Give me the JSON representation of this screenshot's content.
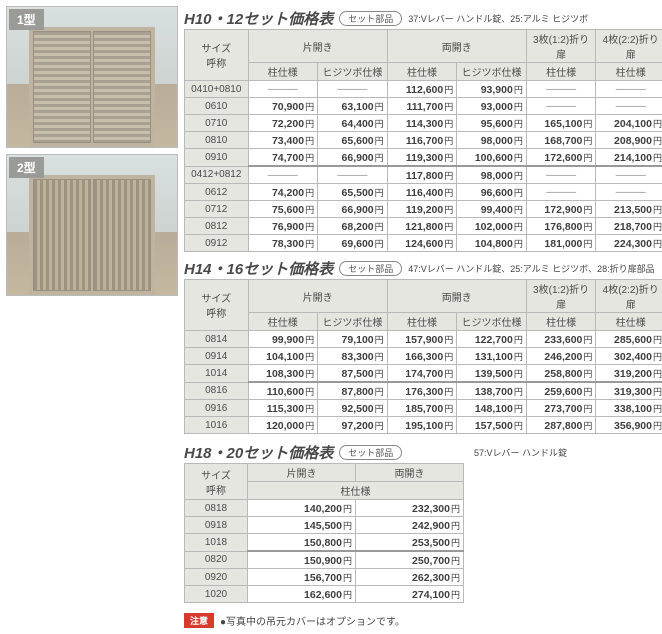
{
  "thumbs": [
    {
      "label": "1型"
    },
    {
      "label": "2型"
    }
  ],
  "common": {
    "parts_pill": "セット部品",
    "size_header1": "サイズ",
    "size_header2": "呼称",
    "single": "片開き",
    "double": "両開き",
    "fold3": "3枚(1:2)折り扉",
    "fold4": "4枚(2:2)折り扉",
    "col_pillar": "柱仕様",
    "col_hiji": "ヒジツボ仕様"
  },
  "table1": {
    "title": "H10・12セット価格表",
    "parts": "37:Vレバー ハンドル錠、25:アルミ ヒジツボ",
    "rows": [
      {
        "size": "0410+0810",
        "c": [
          "—",
          "—",
          "112,600",
          "93,900",
          "—",
          "—"
        ]
      },
      {
        "size": "0610",
        "c": [
          "70,900",
          "63,100",
          "111,700",
          "93,000",
          "—",
          "—"
        ]
      },
      {
        "size": "0710",
        "c": [
          "72,200",
          "64,400",
          "114,300",
          "95,600",
          "165,100",
          "204,100"
        ]
      },
      {
        "size": "0810",
        "c": [
          "73,400",
          "65,600",
          "116,700",
          "98,000",
          "168,700",
          "208,900"
        ]
      },
      {
        "size": "0910",
        "c": [
          "74,700",
          "66,900",
          "119,300",
          "100,600",
          "172,600",
          "214,100"
        ]
      },
      {
        "size": "0412+0812",
        "c": [
          "—",
          "—",
          "117,800",
          "98,000",
          "—",
          "—"
        ],
        "sep": true
      },
      {
        "size": "0612",
        "c": [
          "74,200",
          "65,500",
          "116,400",
          "96,600",
          "—",
          "—"
        ]
      },
      {
        "size": "0712",
        "c": [
          "75,600",
          "66,900",
          "119,200",
          "99,400",
          "172,900",
          "213,500"
        ]
      },
      {
        "size": "0812",
        "c": [
          "76,900",
          "68,200",
          "121,800",
          "102,000",
          "176,800",
          "218,700"
        ]
      },
      {
        "size": "0912",
        "c": [
          "78,300",
          "69,600",
          "124,600",
          "104,800",
          "181,000",
          "224,300"
        ]
      }
    ]
  },
  "table2": {
    "title": "H14・16セット価格表",
    "parts": "47:Vレバー ハンドル錠、25:アルミ ヒジツボ、28:折り扉部品",
    "rows": [
      {
        "size": "0814",
        "c": [
          "99,900",
          "79,100",
          "157,900",
          "122,700",
          "233,600",
          "285,600"
        ]
      },
      {
        "size": "0914",
        "c": [
          "104,100",
          "83,300",
          "166,300",
          "131,100",
          "246,200",
          "302,400"
        ]
      },
      {
        "size": "1014",
        "c": [
          "108,300",
          "87,500",
          "174,700",
          "139,500",
          "258,800",
          "319,200"
        ]
      },
      {
        "size": "0816",
        "c": [
          "110,600",
          "87,800",
          "176,300",
          "138,700",
          "259,600",
          "319,300"
        ],
        "sep": true
      },
      {
        "size": "0916",
        "c": [
          "115,300",
          "92,500",
          "185,700",
          "148,100",
          "273,700",
          "338,100"
        ]
      },
      {
        "size": "1016",
        "c": [
          "120,000",
          "97,200",
          "195,100",
          "157,500",
          "287,800",
          "356,900"
        ]
      }
    ]
  },
  "table3": {
    "title": "H18・20セット価格表",
    "parts": "57:Vレバー ハンドル錠",
    "rows": [
      {
        "size": "0818",
        "c": [
          "140,200",
          "232,300"
        ]
      },
      {
        "size": "0918",
        "c": [
          "145,500",
          "242,900"
        ]
      },
      {
        "size": "1018",
        "c": [
          "150,800",
          "253,500"
        ]
      },
      {
        "size": "0820",
        "c": [
          "150,900",
          "250,700"
        ],
        "sep": true
      },
      {
        "size": "0920",
        "c": [
          "156,700",
          "262,300"
        ]
      },
      {
        "size": "1020",
        "c": [
          "162,600",
          "274,100"
        ]
      }
    ]
  },
  "note": {
    "warn": "注意",
    "text": "●写真中の吊元カバーはオプションです。"
  }
}
